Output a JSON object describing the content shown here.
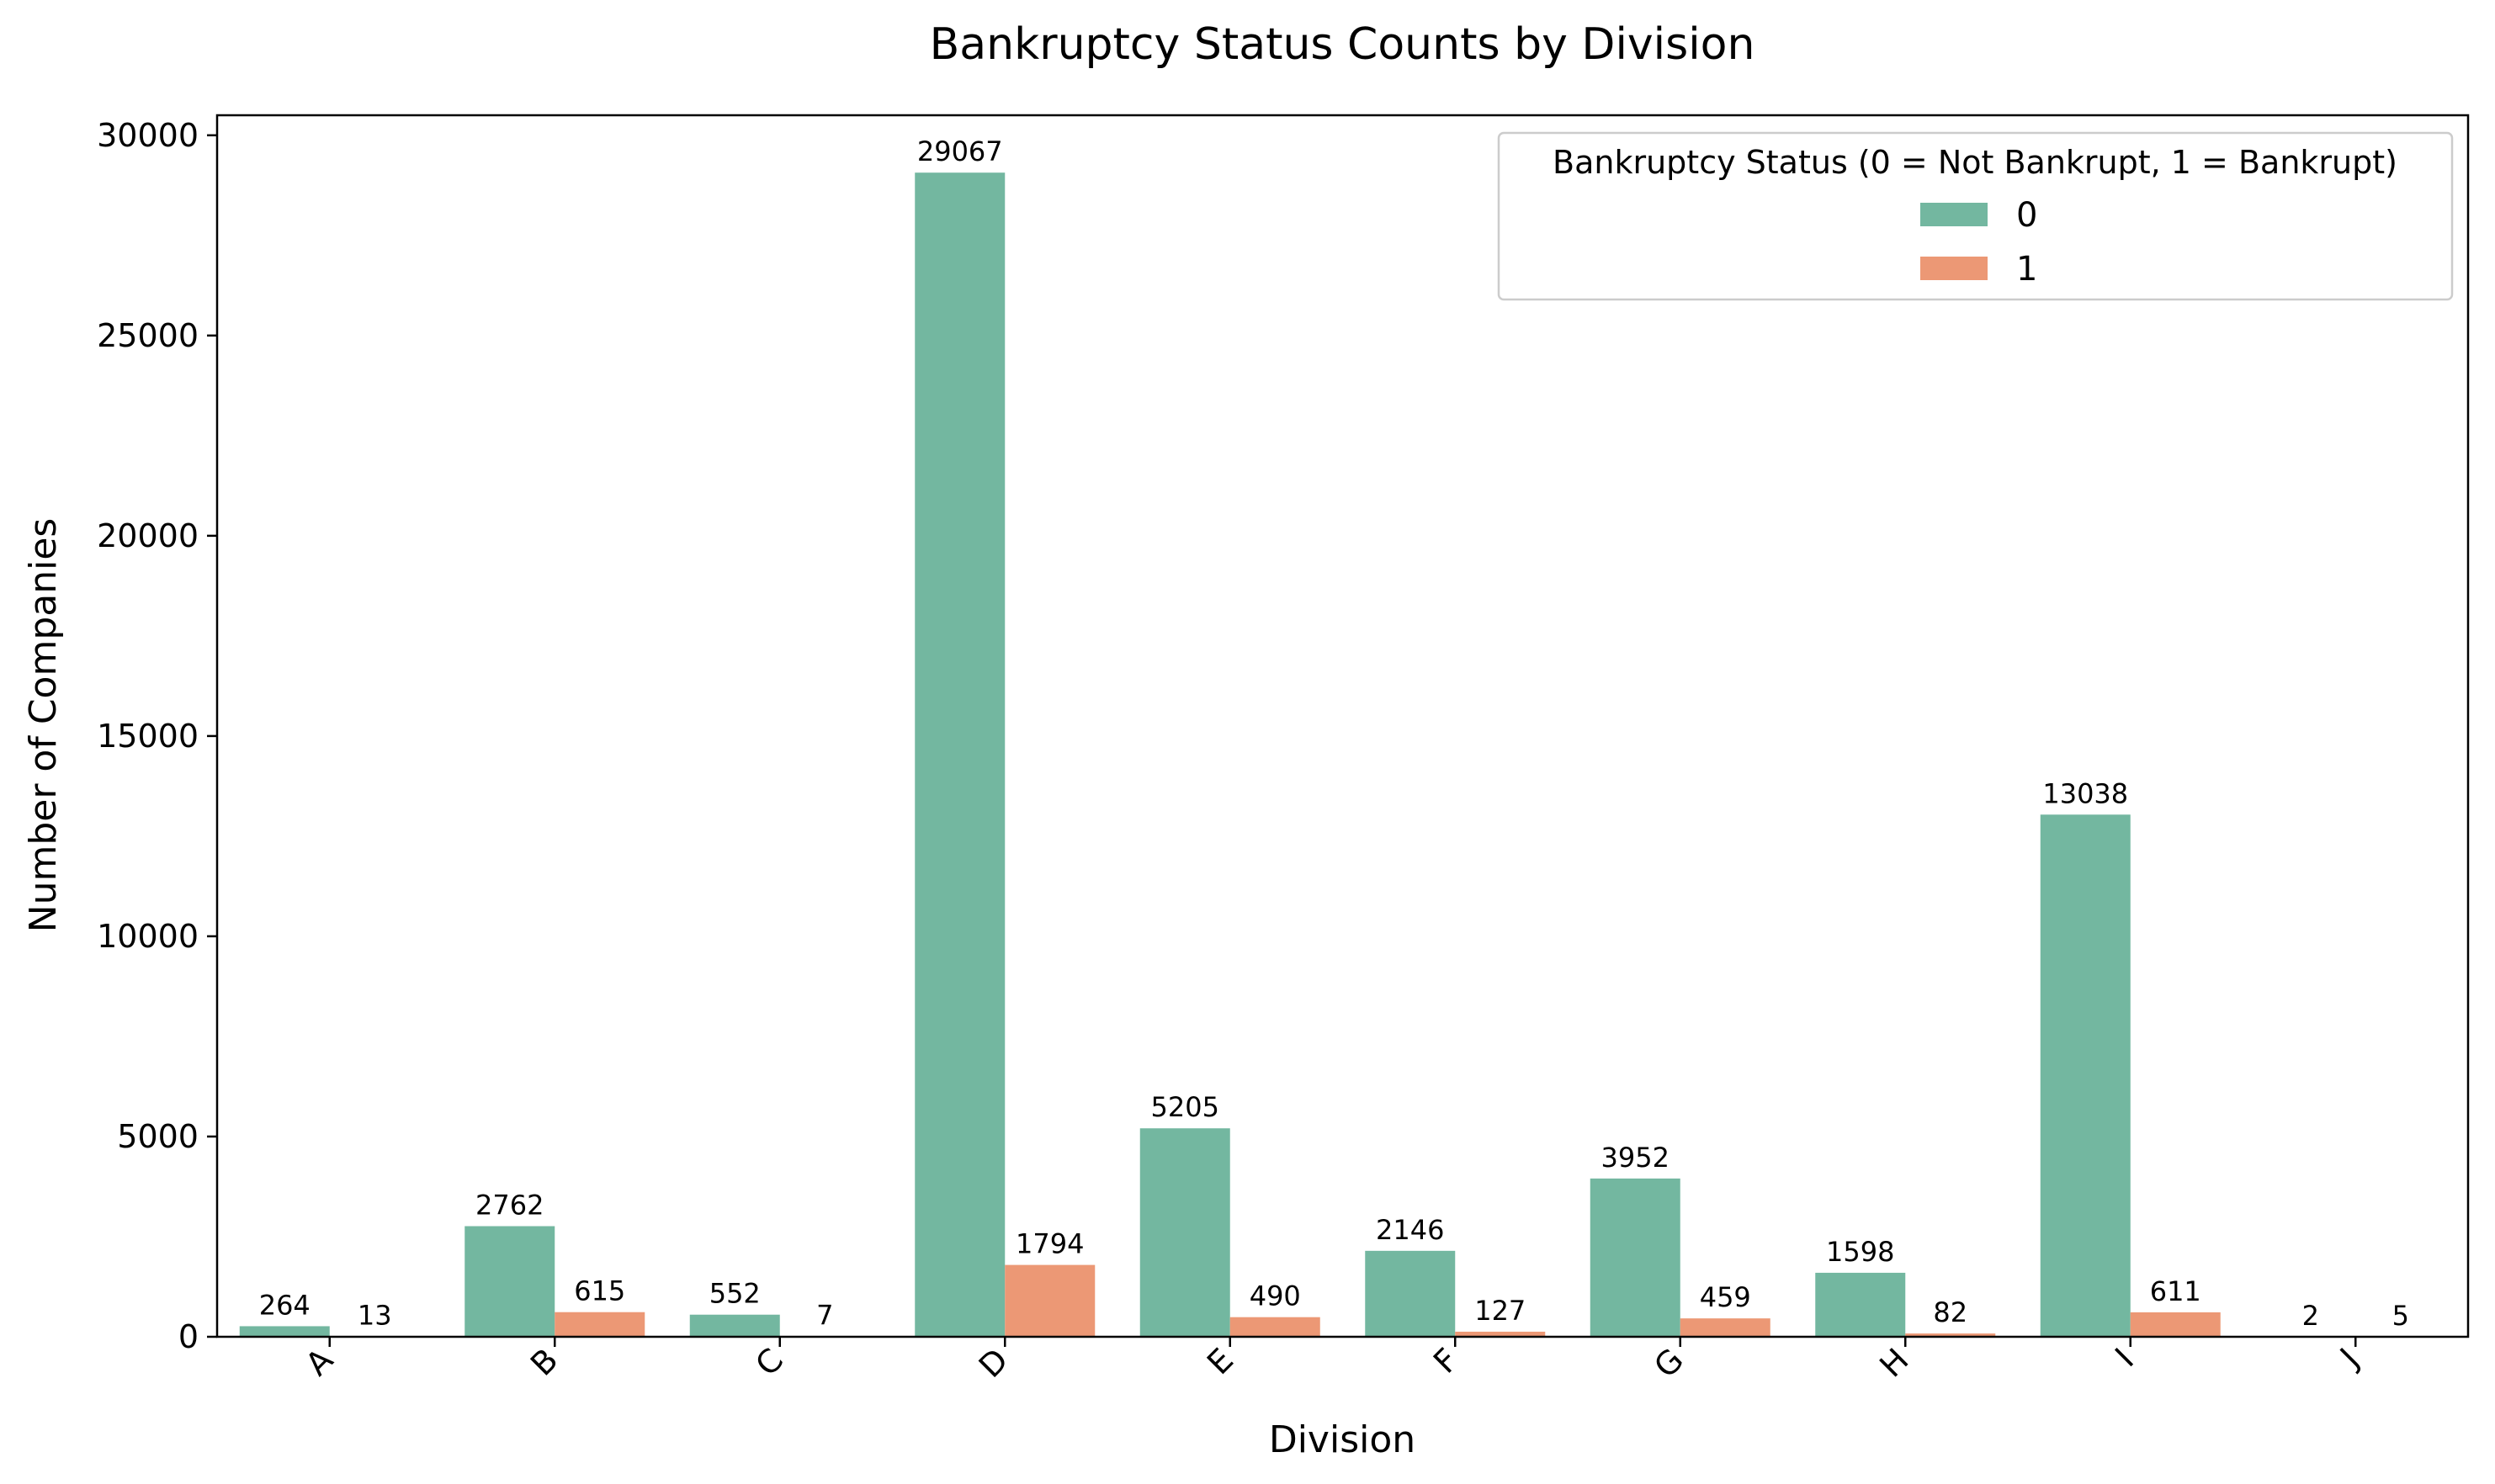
{
  "chart_data": {
    "type": "bar",
    "title": "Bankruptcy Status Counts by Division",
    "xlabel": "Division",
    "ylabel": "Number of Companies",
    "categories": [
      "A",
      "B",
      "C",
      "D",
      "E",
      "F",
      "G",
      "H",
      "I",
      "J"
    ],
    "series": [
      {
        "name": "0",
        "color": "#73b7a0",
        "values": [
          264,
          2762,
          552,
          29067,
          5205,
          2146,
          3952,
          1598,
          13038,
          2
        ]
      },
      {
        "name": "1",
        "color": "#ec9875",
        "values": [
          13,
          615,
          7,
          1794,
          490,
          127,
          459,
          82,
          611,
          5
        ]
      }
    ],
    "ylim": [
      0,
      30500
    ],
    "yticks": [
      0,
      5000,
      10000,
      15000,
      20000,
      25000,
      30000
    ],
    "legend": {
      "title": "Bankruptcy Status (0 = Not Bankrupt, 1 = Bankrupt)",
      "position": "top-right"
    },
    "grid": false
  }
}
